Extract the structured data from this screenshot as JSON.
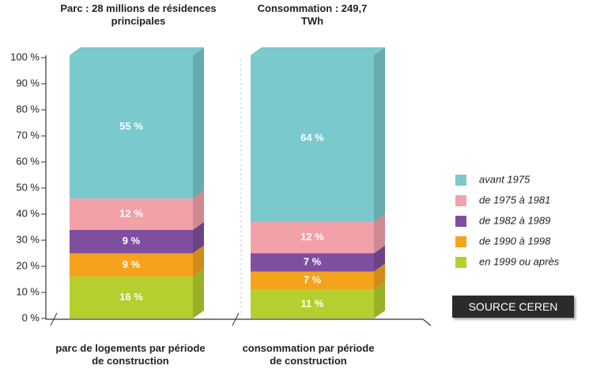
{
  "chart_data": {
    "type": "bar",
    "stacked": true,
    "bar_titles": [
      "Parc : 28 millions de résidences principales",
      "Consommation : 249,7 TWh"
    ],
    "categories": [
      "parc de logements par période de construction",
      "consommation par période de construction"
    ],
    "series": [
      {
        "name": "en 1999 ou après",
        "color": "#b5cf2f",
        "values": [
          16,
          11
        ],
        "value_labels": [
          "16 %",
          "11 %"
        ]
      },
      {
        "name": "de 1990 à 1998",
        "color": "#f5a31c",
        "values": [
          9,
          7
        ],
        "value_labels": [
          "9 %",
          "7 %"
        ]
      },
      {
        "name": "de 1982 à 1989",
        "color": "#7f4f9f",
        "values": [
          9,
          7
        ],
        "value_labels": [
          "9 %",
          "7 %"
        ]
      },
      {
        "name": "de 1975 à 1981",
        "color": "#f3a1a9",
        "values": [
          12,
          12
        ],
        "value_labels": [
          "12 %",
          "12 %"
        ]
      },
      {
        "name": "avant 1975",
        "color": "#7ac9cc",
        "values": [
          55,
          64
        ],
        "value_labels": [
          "55 %",
          "64 %"
        ]
      }
    ],
    "ylim": [
      0,
      100
    ],
    "yticks": [
      {
        "value": 0,
        "label": "0 %"
      },
      {
        "value": 10,
        "label": "10 %"
      },
      {
        "value": 20,
        "label": "20 %"
      },
      {
        "value": 30,
        "label": "30 %"
      },
      {
        "value": 40,
        "label": "40 %"
      },
      {
        "value": 50,
        "label": "50 %"
      },
      {
        "value": 60,
        "label": "60 %"
      },
      {
        "value": 70,
        "label": "70 %"
      },
      {
        "value": 80,
        "label": "80 %"
      },
      {
        "value": 90,
        "label": "90 %"
      },
      {
        "value": 100,
        "label": "100 %"
      }
    ],
    "source": "SOURCE CEREN"
  }
}
